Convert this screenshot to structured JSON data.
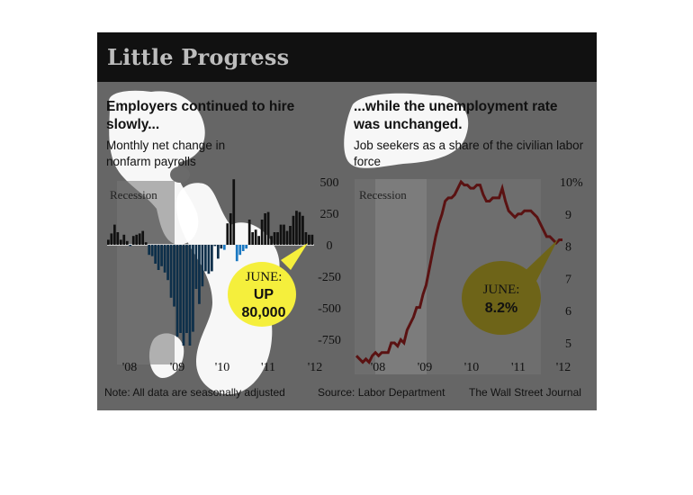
{
  "figure": {
    "title": "Little Progress",
    "note": "Note: All data are seasonally adjusted",
    "source": "Source: Labor Department",
    "credit": "The Wall Street Journal"
  },
  "colors": {
    "background": "#666666",
    "title_bar": "#111111",
    "recession_shade": "#777777",
    "payroll_positive": "#111111",
    "payroll_negative": "#0d2f4a",
    "payroll_negative_highlight": "#1a78c2",
    "unemployment_line": "#5a1212",
    "callout_left": "#f5ef3c",
    "callout_right": "#6e6418",
    "highlight_blob": "#ffffff"
  },
  "chart_data": [
    {
      "type": "bar",
      "title": "Employers continued to hire slowly...",
      "subtitle": "Monthly net change in nonfarm payrolls",
      "recession_label": "Recession",
      "x_tick_labels": [
        "'08",
        "'09",
        "'10",
        "'11",
        "'12"
      ],
      "y_tick_labels": [
        "500",
        "250",
        "0",
        "-250",
        "-500",
        "-750"
      ],
      "ylim": [
        -800,
        520
      ],
      "start": "Jan 2007",
      "values": [
        40,
        90,
        160,
        100,
        40,
        80,
        30,
        -10,
        70,
        80,
        90,
        110,
        20,
        -80,
        -90,
        -150,
        -200,
        -170,
        -220,
        -280,
        -420,
        -490,
        -730,
        -700,
        -800,
        -700,
        -800,
        -690,
        -350,
        -470,
        -330,
        -210,
        -230,
        -210,
        -10,
        -110,
        -30,
        -40,
        170,
        250,
        520,
        -130,
        -80,
        -50,
        -30,
        200,
        100,
        120,
        70,
        200,
        250,
        260,
        70,
        100,
        100,
        160,
        160,
        110,
        150,
        230,
        270,
        260,
        230,
        100,
        80,
        80
      ],
      "callout": {
        "month": "JUNE:",
        "direction": "UP",
        "value": "80,000"
      }
    },
    {
      "type": "line",
      "title": "...while the unemployment rate was unchanged.",
      "subtitle": "Job seekers as a share of the civilian labor force",
      "recession_label": "Recession",
      "x_tick_labels": [
        "'08",
        "'09",
        "'10",
        "'11",
        "'12"
      ],
      "y_tick_labels": [
        "10%",
        "9",
        "8",
        "7",
        "6",
        "5"
      ],
      "ylim": [
        4.6,
        10.0
      ],
      "start": "Jan 2007",
      "values": [
        4.6,
        4.5,
        4.4,
        4.5,
        4.4,
        4.6,
        4.7,
        4.6,
        4.7,
        4.7,
        4.7,
        5.0,
        5.0,
        4.9,
        5.1,
        5.0,
        5.4,
        5.6,
        5.8,
        6.1,
        6.1,
        6.5,
        6.8,
        7.3,
        7.8,
        8.3,
        8.7,
        9.0,
        9.4,
        9.5,
        9.5,
        9.6,
        9.8,
        10.0,
        9.9,
        9.9,
        9.8,
        9.8,
        9.9,
        9.9,
        9.6,
        9.4,
        9.4,
        9.5,
        9.5,
        9.5,
        9.8,
        9.4,
        9.1,
        9.0,
        8.9,
        9.0,
        9.0,
        9.1,
        9.1,
        9.1,
        9.0,
        8.9,
        8.7,
        8.5,
        8.3,
        8.3,
        8.2,
        8.1,
        8.2,
        8.2
      ],
      "callout": {
        "month": "JUNE:",
        "value": "8.2%"
      }
    }
  ]
}
